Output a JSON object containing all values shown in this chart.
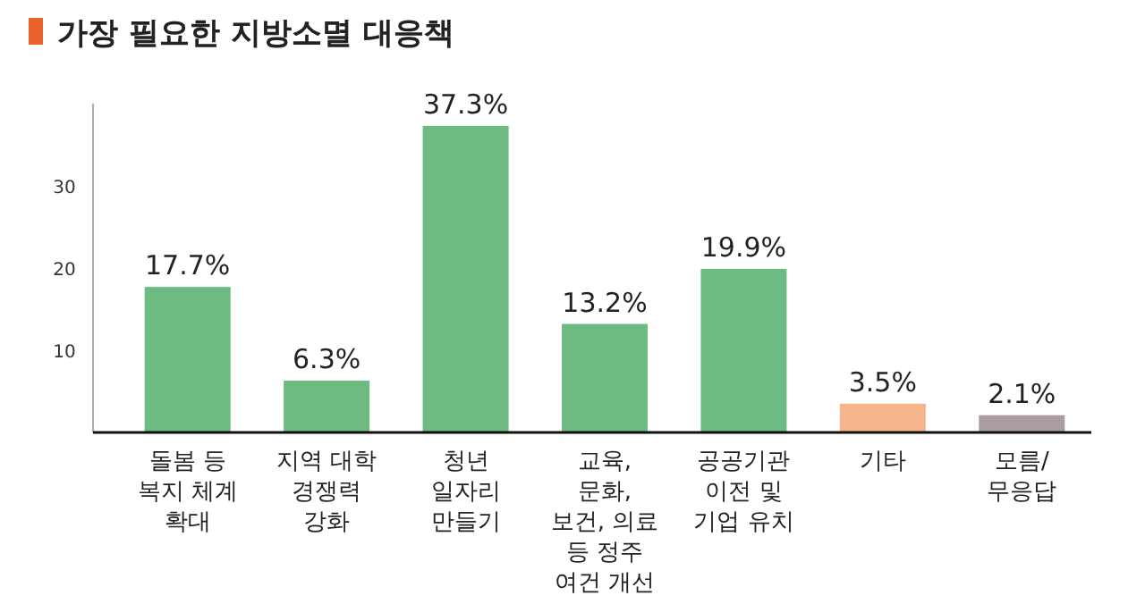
{
  "chart_data": {
    "type": "bar",
    "title": "가장 필요한 지방소멸 대응책",
    "categories": [
      "돌봄 등 복지 체계 확대",
      "지역 대학 경쟁력 강화",
      "청년 일자리 만들기",
      "교육, 문화, 보건, 의료 등 정주 여건 개선",
      "공공기관 이전 및 기업 유치",
      "기타",
      "모름/ 무응답"
    ],
    "values": [
      17.7,
      6.3,
      37.3,
      13.2,
      19.9,
      3.5,
      2.1
    ],
    "value_labels": [
      "17.7%",
      "6.3%",
      "37.3%",
      "13.2%",
      "19.9%",
      "3.5%",
      "2.1%"
    ],
    "colors": [
      "#6dbb82",
      "#6dbb82",
      "#6dbb82",
      "#6dbb82",
      "#6dbb82",
      "#f4b48c",
      "#a99ca3"
    ],
    "ylim": [
      0,
      40
    ],
    "yticks": [
      10,
      20,
      30
    ]
  }
}
